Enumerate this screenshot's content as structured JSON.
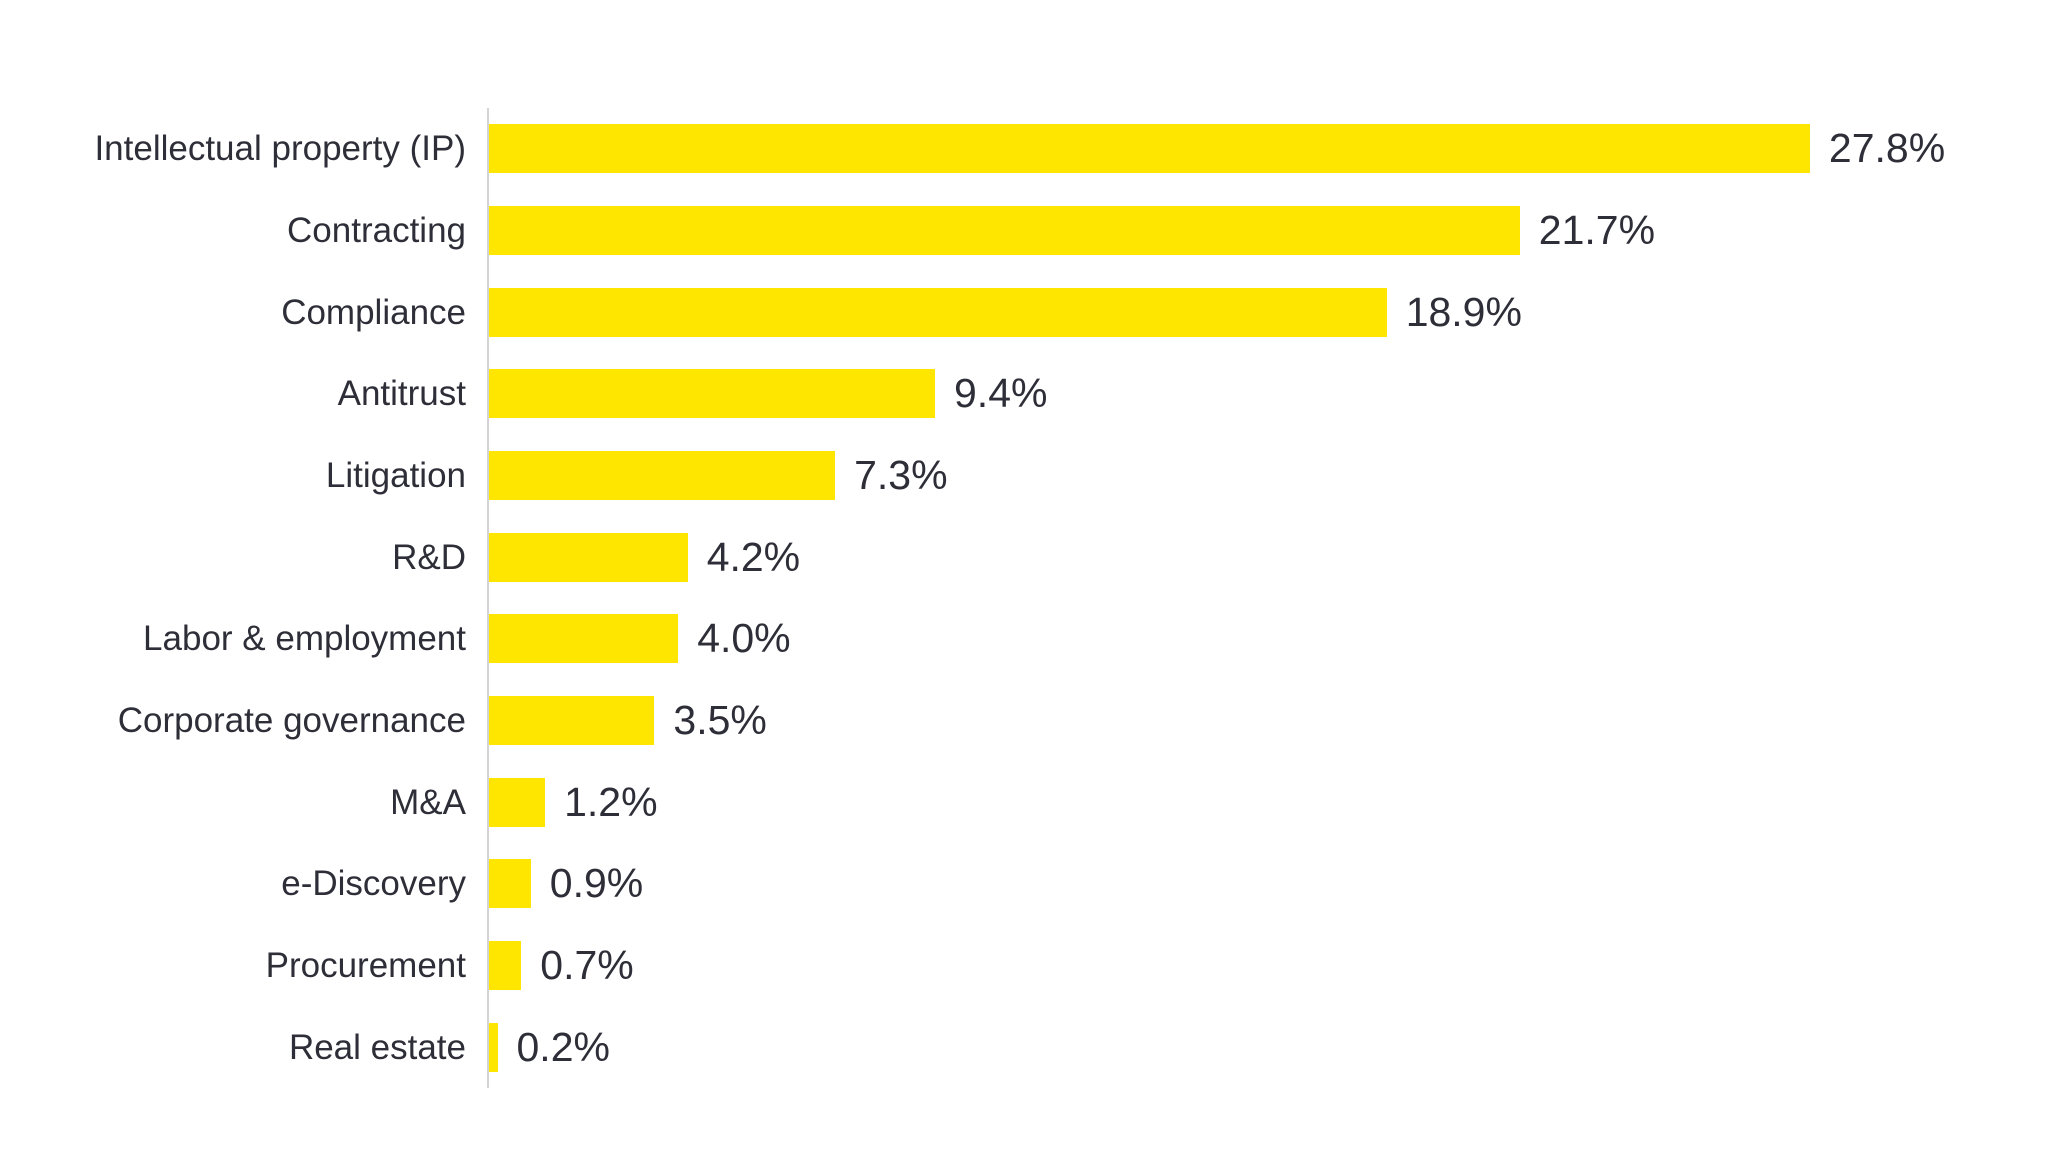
{
  "chart_data": {
    "type": "bar",
    "orientation": "horizontal",
    "title": "",
    "xlabel": "",
    "ylabel": "",
    "categories": [
      "Intellectual property (IP)",
      "Contracting",
      "Compliance",
      "Antitrust",
      "Litigation",
      "R&D",
      "Labor & employment",
      "Corporate governance",
      "M&A",
      "e-Discovery",
      "Procurement",
      "Real estate"
    ],
    "values": [
      27.8,
      21.7,
      18.9,
      9.4,
      7.3,
      4.2,
      4.0,
      3.5,
      1.2,
      0.9,
      0.7,
      0.2
    ],
    "value_labels": [
      "27.8%",
      "21.7%",
      "18.9%",
      "9.4%",
      "7.3%",
      "4.2%",
      "4.0%",
      "3.5%",
      "1.2%",
      "0.9%",
      "0.7%",
      "0.2%"
    ],
    "xlim": [
      0,
      30
    ],
    "grid": false,
    "legend": false,
    "bar_color": "#FFE600",
    "label_color": "#2E2E38",
    "axis_line_color": "#D4D4D7",
    "background_color": "#FFFFFF"
  }
}
